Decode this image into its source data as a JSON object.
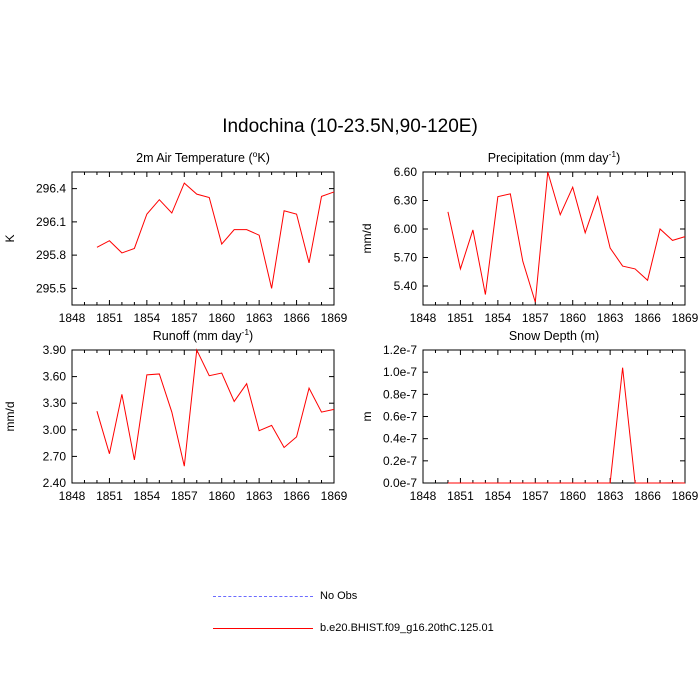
{
  "title": "Indochina (10-23.5N,90-120E)",
  "legend": [
    {
      "label": "No Obs",
      "color": "#6b6bff",
      "style": "dashed"
    },
    {
      "label": "b.e20.BHIST.f09_g16.20thC.125.01",
      "color": "#ff0000",
      "style": "solid"
    }
  ],
  "chart_data": [
    {
      "type": "line",
      "title_text": "2m Air Temperature (",
      "title_sup": "o",
      "title_tail": "K)",
      "ylabel": "K",
      "xlim": [
        1848,
        1869
      ],
      "ylim": [
        295.35,
        296.55
      ],
      "xticks": [
        "1848",
        "1851",
        "1854",
        "1857",
        "1860",
        "1863",
        "1866",
        "1869"
      ],
      "yticks": [
        "295.5",
        "295.8",
        "296.1",
        "296.4"
      ],
      "x": [
        1850,
        1851,
        1852,
        1853,
        1854,
        1855,
        1856,
        1857,
        1858,
        1859,
        1860,
        1861,
        1862,
        1863,
        1864,
        1865,
        1866,
        1867,
        1868,
        1869
      ],
      "series": [
        {
          "color": "#ff0000",
          "values": [
            295.87,
            295.93,
            295.82,
            295.86,
            296.17,
            296.3,
            296.18,
            296.45,
            296.35,
            296.32,
            295.9,
            296.03,
            296.03,
            295.98,
            295.5,
            296.2,
            296.17,
            295.73,
            296.33,
            296.37
          ]
        }
      ]
    },
    {
      "type": "line",
      "title_text": "Precipitation (mm day",
      "title_sup": "-1",
      "title_tail": ")",
      "ylabel": "mm/d",
      "xlim": [
        1848,
        1869
      ],
      "ylim": [
        5.2,
        6.6
      ],
      "xticks": [
        "1848",
        "1851",
        "1854",
        "1857",
        "1860",
        "1863",
        "1866",
        "1869"
      ],
      "yticks": [
        "5.40",
        "5.70",
        "6.00",
        "6.30",
        "6.60"
      ],
      "x": [
        1850,
        1851,
        1852,
        1853,
        1854,
        1855,
        1856,
        1857,
        1858,
        1859,
        1860,
        1861,
        1862,
        1863,
        1864,
        1865,
        1866,
        1867,
        1868,
        1869
      ],
      "series": [
        {
          "color": "#ff0000",
          "values": [
            6.18,
            5.58,
            5.99,
            5.31,
            6.34,
            6.37,
            5.66,
            5.23,
            6.6,
            6.15,
            6.44,
            5.96,
            6.34,
            5.8,
            5.61,
            5.58,
            5.46,
            6.0,
            5.88,
            5.92
          ]
        }
      ]
    },
    {
      "type": "line",
      "title_text": "Runoff (mm day",
      "title_sup": "-1",
      "title_tail": ")",
      "ylabel": "mm/d",
      "xlim": [
        1848,
        1869
      ],
      "ylim": [
        2.4,
        3.9
      ],
      "xticks": [
        "1848",
        "1851",
        "1854",
        "1857",
        "1860",
        "1863",
        "1866",
        "1869"
      ],
      "yticks": [
        "2.40",
        "2.70",
        "3.00",
        "3.30",
        "3.60",
        "3.90"
      ],
      "x": [
        1850,
        1851,
        1852,
        1853,
        1854,
        1855,
        1856,
        1857,
        1858,
        1859,
        1860,
        1861,
        1862,
        1863,
        1864,
        1865,
        1866,
        1867,
        1868,
        1869
      ],
      "series": [
        {
          "color": "#ff0000",
          "values": [
            3.21,
            2.73,
            3.4,
            2.66,
            3.62,
            3.63,
            3.2,
            2.59,
            3.9,
            3.61,
            3.64,
            3.32,
            3.52,
            2.99,
            3.05,
            2.8,
            2.92,
            3.47,
            3.2,
            3.23
          ]
        }
      ]
    },
    {
      "type": "line",
      "title_text": "Snow Depth (m)",
      "title_sup": "",
      "title_tail": "",
      "ylabel": "m",
      "xlim": [
        1848,
        1869
      ],
      "ylim": [
        0,
        1.2e-07
      ],
      "xticks": [
        "1848",
        "1851",
        "1854",
        "1857",
        "1860",
        "1863",
        "1866",
        "1869"
      ],
      "yticks": [
        "0.0e-7",
        "0.2e-7",
        "0.4e-7",
        "0.6e-7",
        "0.8e-7",
        "1.0e-7",
        "1.2e-7"
      ],
      "x": [
        1850,
        1851,
        1852,
        1853,
        1854,
        1855,
        1856,
        1857,
        1858,
        1859,
        1860,
        1861,
        1862,
        1863,
        1864,
        1865,
        1866,
        1867,
        1868,
        1869
      ],
      "series": [
        {
          "color": "#ff0000",
          "values": [
            0,
            0,
            0,
            0,
            0,
            0,
            0,
            0,
            0,
            0,
            0,
            0,
            0,
            0,
            1.04e-07,
            0,
            0,
            0,
            1e-10,
            0
          ]
        }
      ]
    }
  ]
}
